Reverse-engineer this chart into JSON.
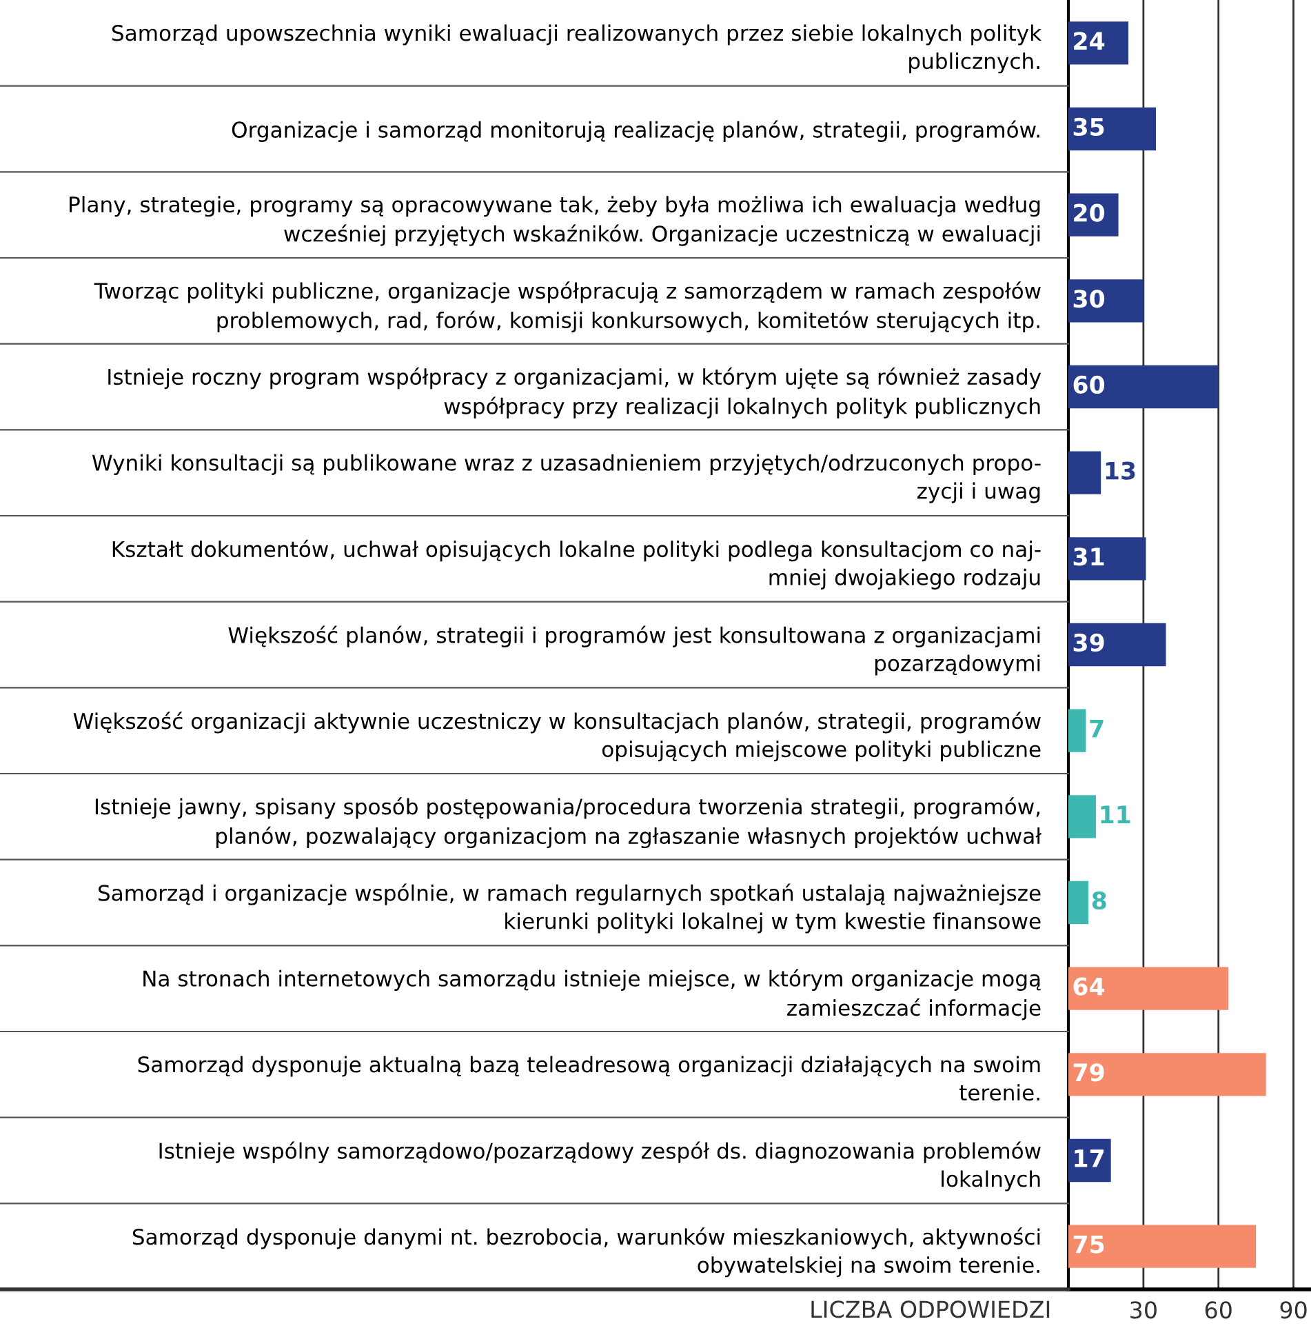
{
  "chart_data": {
    "type": "bar",
    "orientation": "horizontal",
    "xlabel": "LICZBA ODPOWIEDZI",
    "categories": [
      "Samorząd upowszechnia wyniki ewaluacji realizowanych przez siebie lokalnych polityk\npublicznych.",
      "Organizacje i samorząd monitorują realizację planów, strategii, programów.",
      "Plany, strategie, programy są opracowywane tak, żeby była możliwa ich ewaluacja według\nwcześniej przyjętych wskaźników. Organizacje uczestniczą w ewaluacji",
      "Tworząc polityki publiczne, organizacje współpracują z samorządem w ramach zespołów\nproblemowych, rad, forów, komisji konkursowych, komitetów sterujących itp.",
      "Istnieje roczny program współpracy z organizacjami, w którym ujęte są również zasady\nwspółpracy przy realizacji lokalnych polityk publicznych",
      "Wyniki konsultacji są publikowane wraz z uzasadnieniem przyjętych/odrzuconych propo-\nzycji i uwag",
      "Kształt dokumentów, uchwał opisujących lokalne polityki podlega konsultacjom co naj-\nmniej dwojakiego rodzaju",
      "Większość planów, strategii i programów jest konsultowana z organizacjami\npozarządowymi",
      "Większość organizacji aktywnie uczestniczy w konsultacjach planów, strategii, programów\nopisujących miejscowe polityki publiczne",
      "Istnieje jawny, spisany sposób postępowania/procedura tworzenia strategii, programów,\nplanów, pozwalający organizacjom na zgłaszanie własnych projektów uchwał",
      "Samorząd i organizacje wspólnie, w ramach regularnych spotkań ustalają najważniejsze\nkierunki polityki lokalnej w tym kwestie finansowe",
      "Na stronach internetowych samorządu istnieje miejsce, w którym organizacje mogą\nzamieszczać informacje",
      "Samorząd dysponuje aktualną bazą teleadresową organizacji działających na swoim\nterenie.",
      "Istnieje wspólny samorządowo/pozarządowy zespół ds. diagnozowania problemów\nlokalnych",
      "Samorząd dysponuje danymi nt. bezrobocia, warunków mieszkaniowych, aktywności\nobywatelskiej na swoim terenie."
    ],
    "values": [
      24,
      35,
      20,
      30,
      60,
      13,
      31,
      39,
      7,
      11,
      8,
      64,
      79,
      17,
      75
    ],
    "colors": [
      "#263b8a",
      "#263b8a",
      "#263b8a",
      "#263b8a",
      "#263b8a",
      "#263b8a",
      "#263b8a",
      "#263b8a",
      "#3db7b0",
      "#3db7b0",
      "#3db7b0",
      "#f58b6a",
      "#f58b6a",
      "#263b8a",
      "#f58b6a"
    ],
    "data_labels": true,
    "xlim": [
      0,
      97
    ],
    "xticks": [
      30,
      60,
      90
    ],
    "grid": "x"
  }
}
